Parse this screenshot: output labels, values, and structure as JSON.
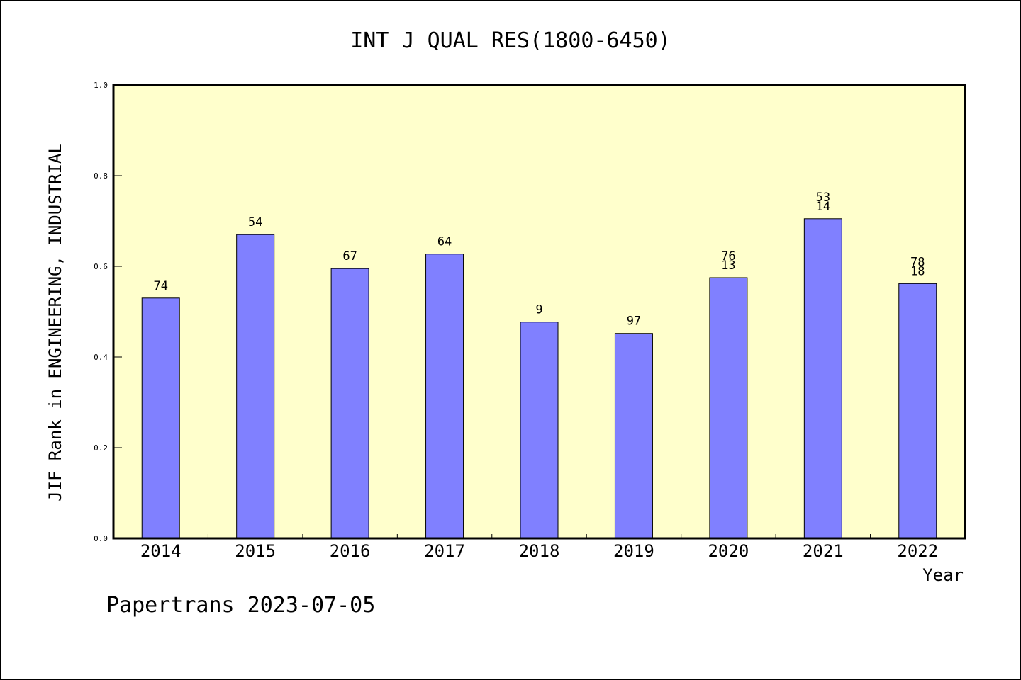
{
  "chart_data": {
    "type": "bar",
    "title": "INT J QUAL RES(1800-6450)",
    "xlabel": "Year",
    "ylabel": "JIF Rank in ENGINEERING, INDUSTRIAL",
    "ylim": [
      0,
      1.0
    ],
    "yticks": [
      "0.0",
      "0.2",
      "0.4",
      "0.6",
      "0.8",
      "1.0"
    ],
    "categories": [
      "2014",
      "2015",
      "2016",
      "2017",
      "2018",
      "2019",
      "2020",
      "2021",
      "2022"
    ],
    "values": [
      0.53,
      0.67,
      0.595,
      0.627,
      0.477,
      0.452,
      0.575,
      0.705,
      0.562
    ],
    "bar_labels": [
      [
        "74"
      ],
      [
        "54"
      ],
      [
        "67"
      ],
      [
        "64"
      ],
      [
        "9"
      ],
      [
        "97"
      ],
      [
        "76",
        "13"
      ],
      [
        "53",
        "14"
      ],
      [
        "78",
        "18"
      ]
    ],
    "grid": false,
    "bar_color": "#8080ff",
    "plot_background": "#ffffcc"
  },
  "footer": "Papertrans 2023-07-05"
}
